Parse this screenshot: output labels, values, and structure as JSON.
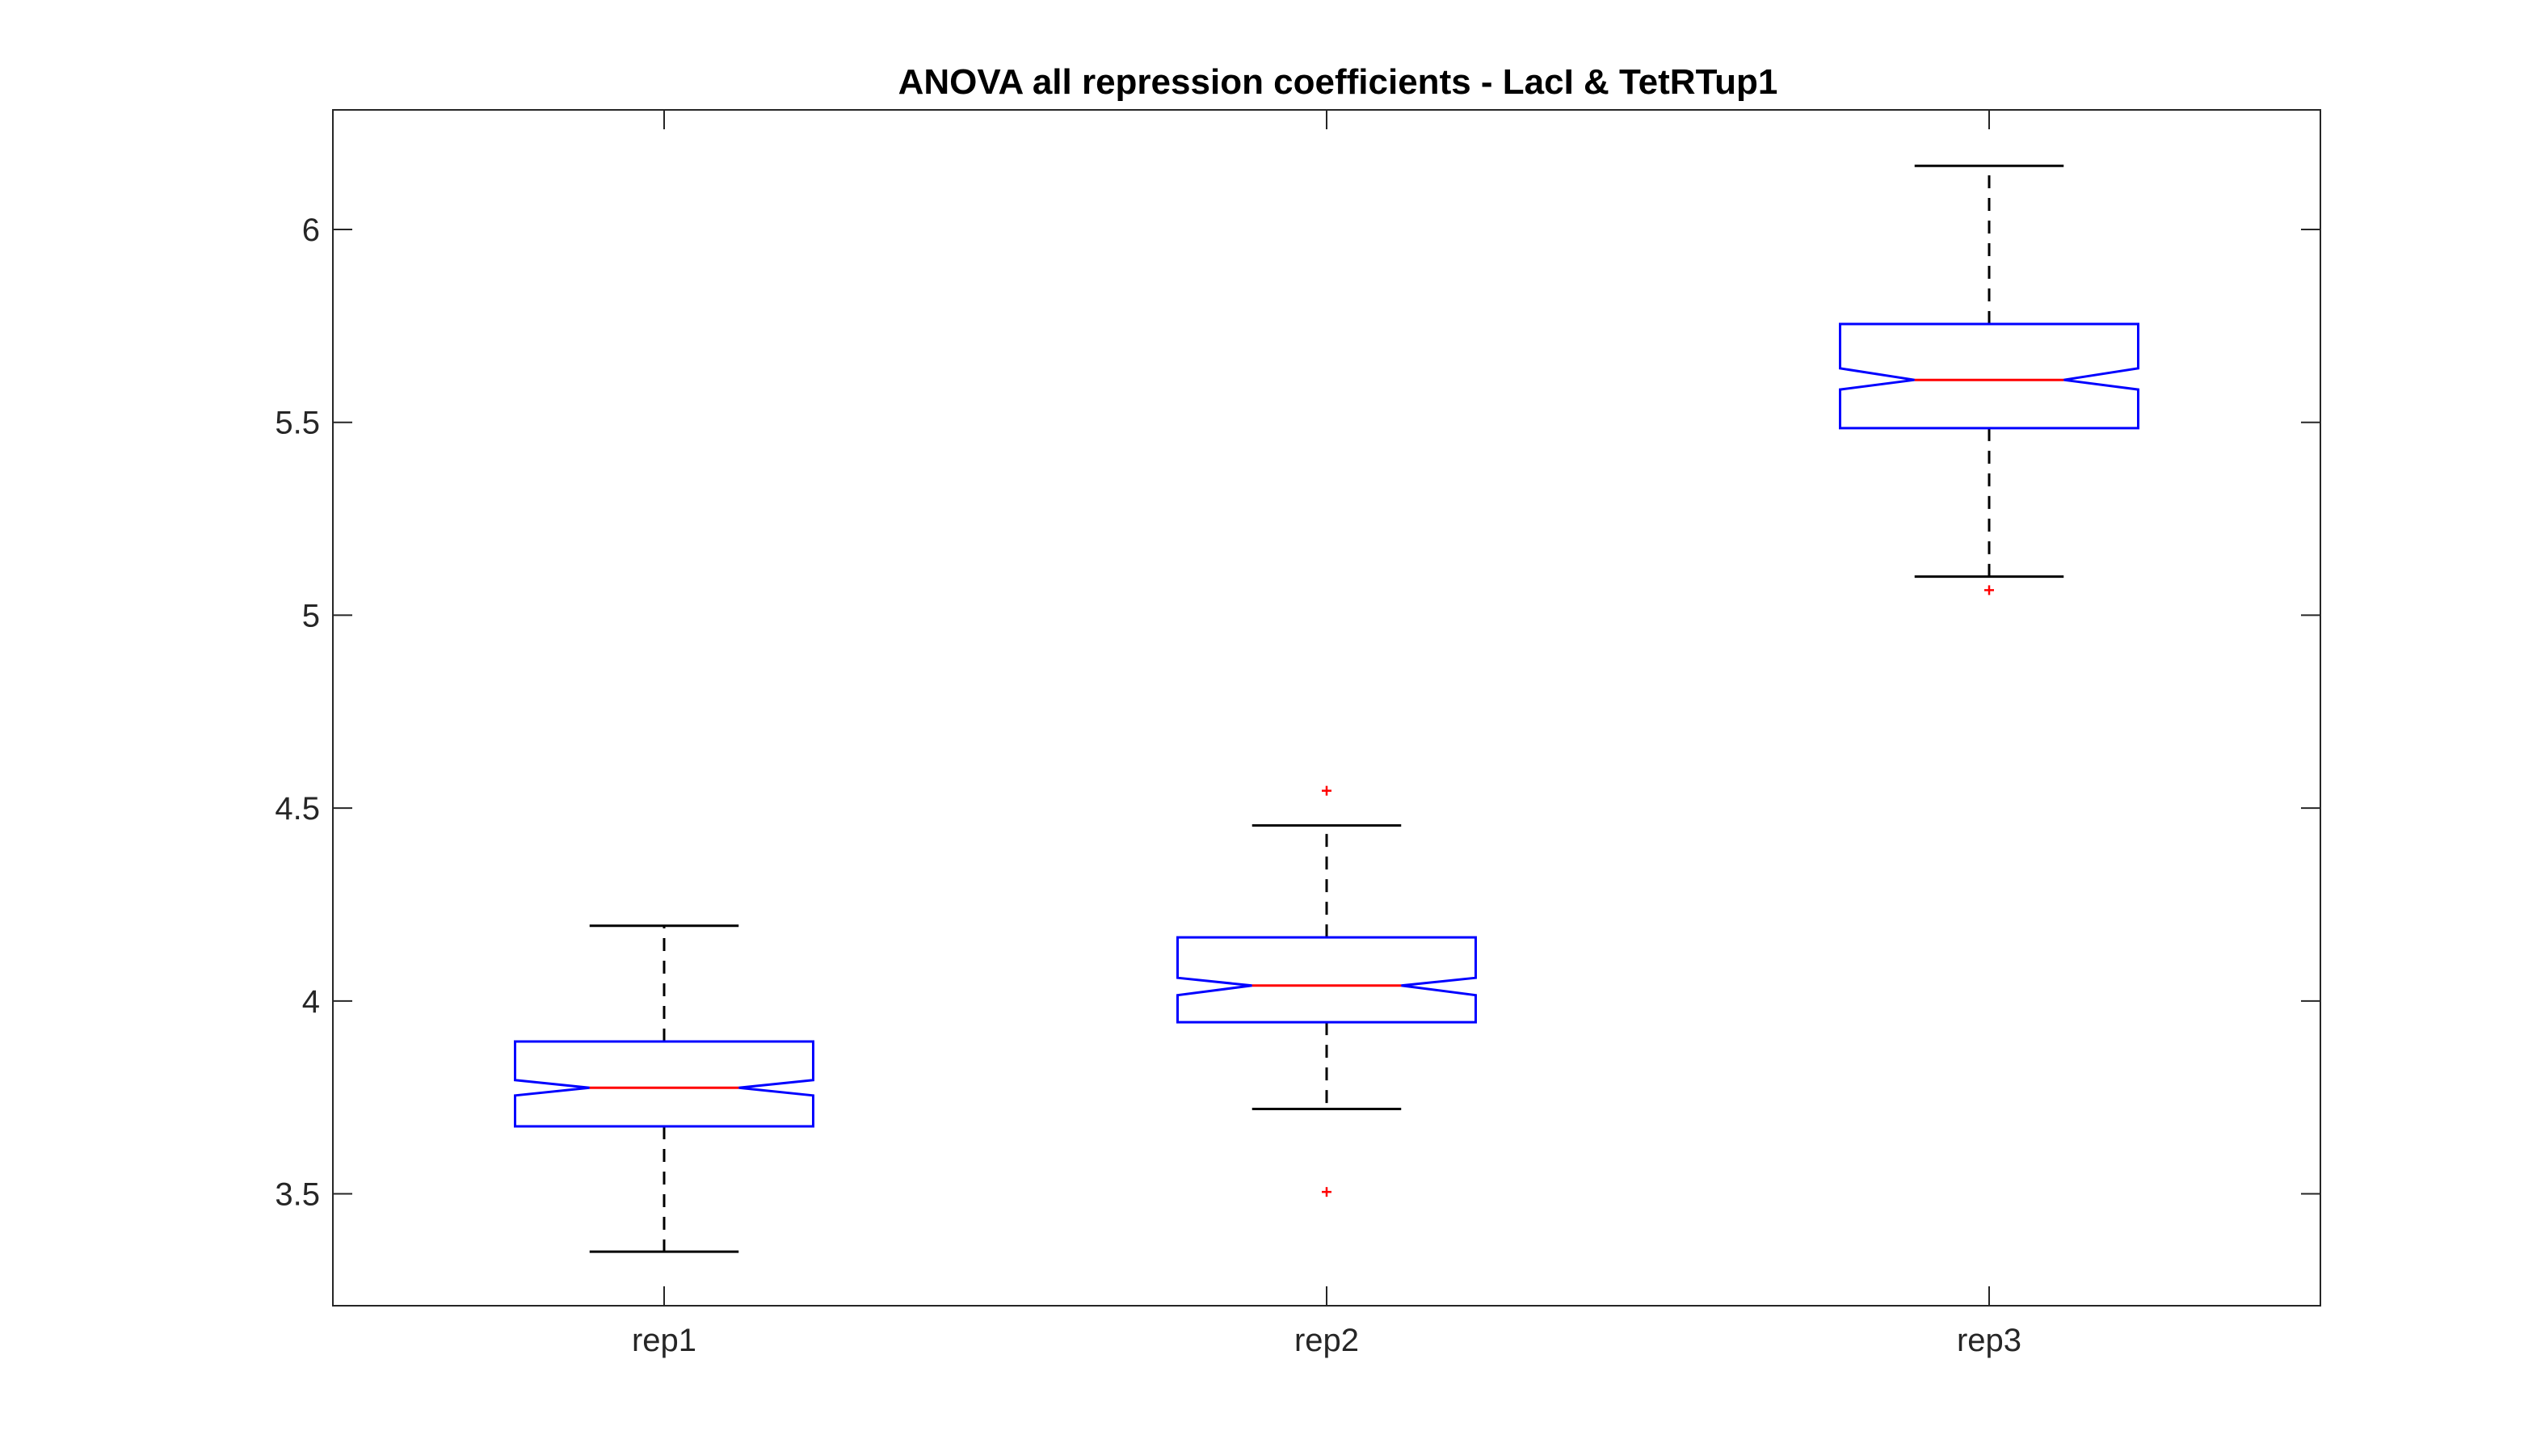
{
  "chart_data": {
    "type": "boxplot",
    "title": "ANOVA all repression coefficients - LacI & TetRTup1",
    "xlabel": "",
    "ylabel": "",
    "ylim": [
      3.21,
      6.31
    ],
    "yticks": [
      3.5,
      4,
      4.5,
      5,
      5.5,
      6
    ],
    "ytick_labels": [
      "3.5",
      "4",
      "4.5",
      "5",
      "5.5",
      "6"
    ],
    "notched": true,
    "categories": [
      "rep1",
      "rep2",
      "rep3"
    ],
    "boxes": [
      {
        "label": "rep1",
        "whisker_low": 3.35,
        "q1": 3.675,
        "median": 3.775,
        "q3": 3.895,
        "whisker_high": 4.195,
        "notch_low": 3.755,
        "notch_high": 3.795,
        "outliers": []
      },
      {
        "label": "rep2",
        "whisker_low": 3.72,
        "q1": 3.945,
        "median": 4.04,
        "q3": 4.165,
        "whisker_high": 4.455,
        "notch_low": 4.015,
        "notch_high": 4.06,
        "outliers": [
          4.545,
          3.505
        ]
      },
      {
        "label": "rep3",
        "whisker_low": 5.1,
        "q1": 5.485,
        "median": 5.61,
        "q3": 5.755,
        "whisker_high": 6.165,
        "notch_low": 5.585,
        "notch_high": 5.64,
        "outliers": [
          5.065
        ]
      }
    ],
    "grid": false,
    "colors": {
      "box": "#0000ff",
      "median": "#ff0000",
      "whisker": "#000000",
      "outlier": "#ff0000",
      "axes": "#262626"
    }
  }
}
